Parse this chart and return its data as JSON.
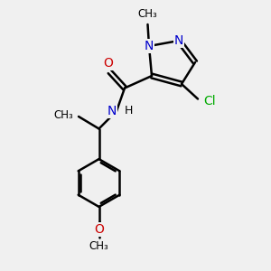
{
  "bg_color": "#f0f0f0",
  "bond_color": "#000000",
  "n_color": "#0000cc",
  "o_color": "#cc0000",
  "cl_color": "#00aa00",
  "line_width": 1.8,
  "font_size": 10,
  "fig_size": [
    3.0,
    3.0
  ],
  "dpi": 100,
  "xlim": [
    0,
    10
  ],
  "ylim": [
    0,
    10
  ]
}
